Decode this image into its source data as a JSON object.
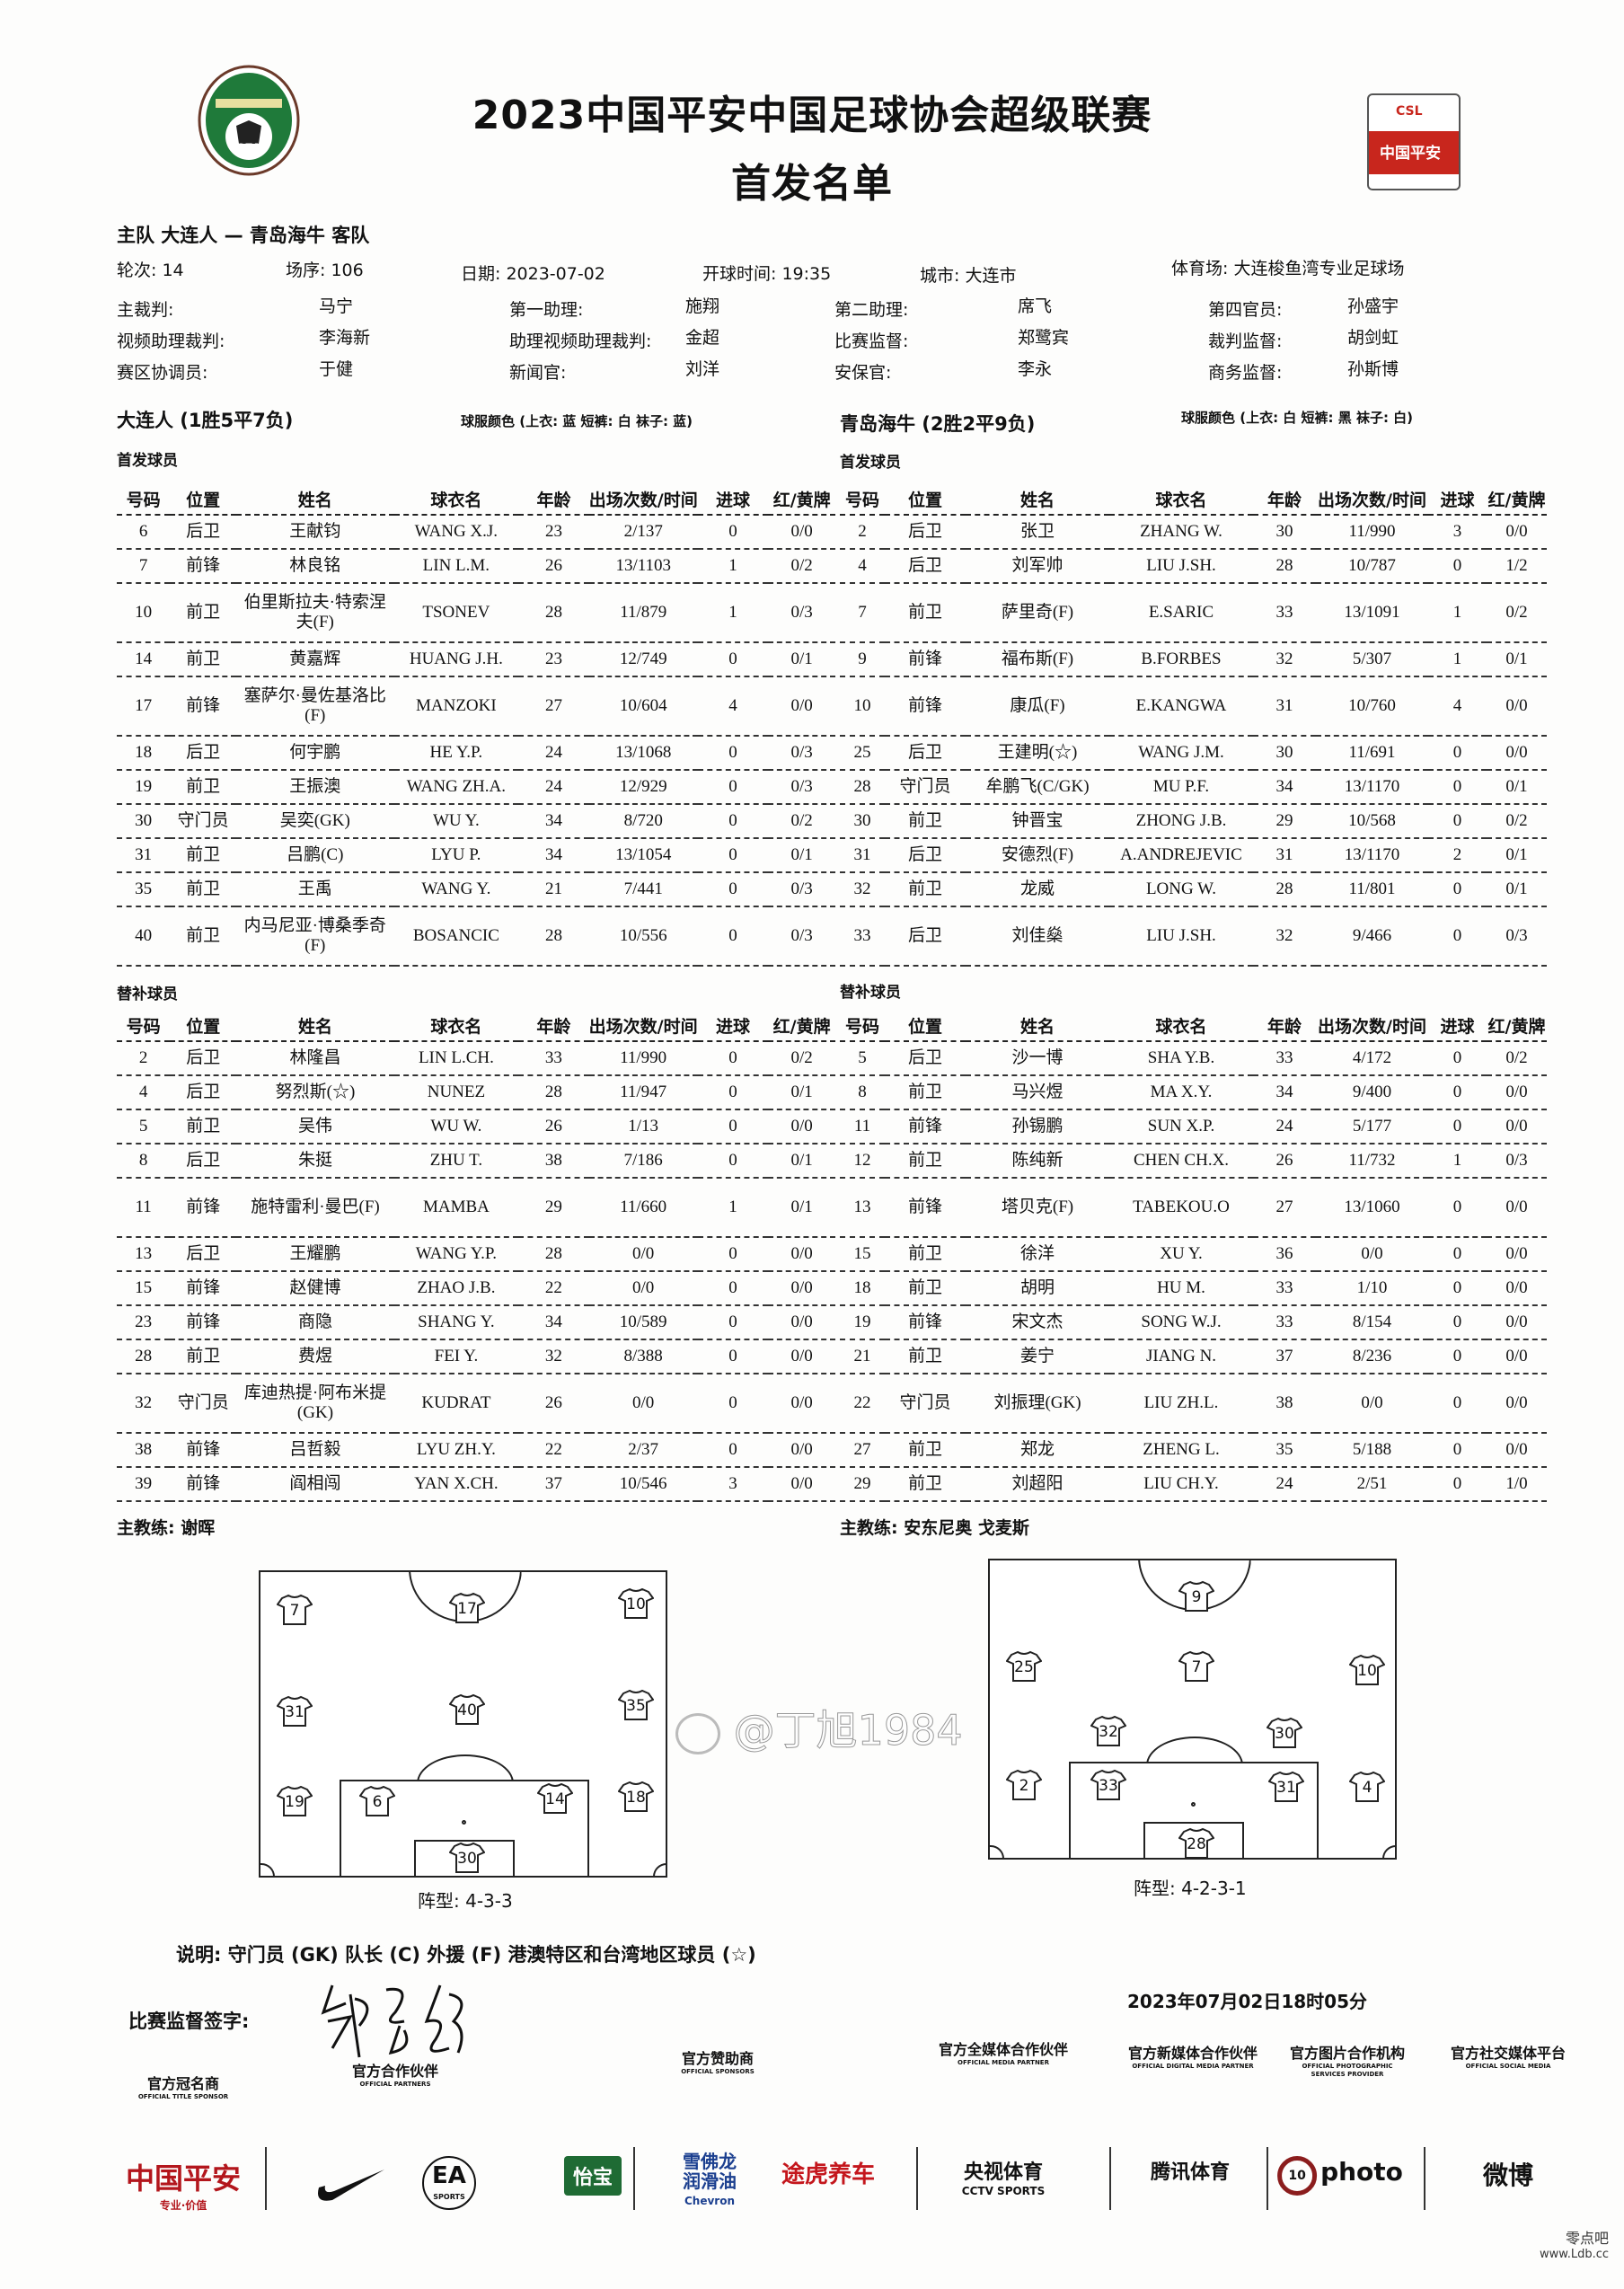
{
  "header": {
    "title": "2023中国平安中国足球协会超级联赛",
    "subtitle": "首发名单",
    "cfa_logo_text": "CFA",
    "csl_logo_text": "CSL",
    "csl_logo_sponsor": "中国平安"
  },
  "match": {
    "teams_line": "主队 大连人 — 青岛海牛 客队",
    "round": "轮次: 14",
    "match_no": "场序: 106",
    "date": "日期: 2023-07-02",
    "kickoff": "开球时间: 19:35",
    "city": "城市: 大连市",
    "stadium": "体育场: 大连梭鱼湾专业足球场"
  },
  "officials": [
    {
      "label": "主裁判:",
      "value": "马宁"
    },
    {
      "label": "第一助理:",
      "value": "施翔"
    },
    {
      "label": "第二助理:",
      "value": "席飞"
    },
    {
      "label": "第四官员:",
      "value": "孙盛宇"
    },
    {
      "label": "视频助理裁判:",
      "value": "李海新"
    },
    {
      "label": "助理视频助理裁判:",
      "value": "金超"
    },
    {
      "label": "比赛监督:",
      "value": "郑鹭宾"
    },
    {
      "label": "裁判监督:",
      "value": "胡剑虹"
    },
    {
      "label": "赛区协调员:",
      "value": "于健"
    },
    {
      "label": "新闻官:",
      "value": "刘洋"
    },
    {
      "label": "安保官:",
      "value": "李永"
    },
    {
      "label": "商务监督:",
      "value": "孙斯博"
    }
  ],
  "columns": [
    "号码",
    "位置",
    "姓名",
    "球衣名",
    "年龄",
    "出场次数/时间",
    "进球",
    "红/黄牌"
  ],
  "home": {
    "name": "大连人 (1胜5平7负)",
    "kit": "球服颜色 (上衣: 蓝 短裤: 白 袜子: 蓝)",
    "starters_label": "首发球员",
    "subs_label": "替补球员",
    "starters": [
      [
        "6",
        "后卫",
        "王献钧",
        "WANG X.J.",
        "23",
        "2/137",
        "0",
        "0/0"
      ],
      [
        "7",
        "前锋",
        "林良铭",
        "LIN L.M.",
        "26",
        "13/1103",
        "1",
        "0/2"
      ],
      [
        "10",
        "前卫",
        "伯里斯拉夫·特索涅夫(F)",
        "TSONEV",
        "28",
        "11/879",
        "1",
        "0/3"
      ],
      [
        "14",
        "前卫",
        "黄嘉辉",
        "HUANG J.H.",
        "23",
        "12/749",
        "0",
        "0/1"
      ],
      [
        "17",
        "前锋",
        "塞萨尔·曼佐基洛比(F)",
        "MANZOKI",
        "27",
        "10/604",
        "4",
        "0/0"
      ],
      [
        "18",
        "后卫",
        "何宇鹏",
        "HE Y.P.",
        "24",
        "13/1068",
        "0",
        "0/3"
      ],
      [
        "19",
        "前卫",
        "王振澳",
        "WANG ZH.A.",
        "24",
        "12/929",
        "0",
        "0/3"
      ],
      [
        "30",
        "守门员",
        "吴奕(GK)",
        "WU Y.",
        "34",
        "8/720",
        "0",
        "0/2"
      ],
      [
        "31",
        "前卫",
        "吕鹏(C)",
        "LYU P.",
        "34",
        "13/1054",
        "0",
        "0/1"
      ],
      [
        "35",
        "前卫",
        "王禹",
        "WANG Y.",
        "21",
        "7/441",
        "0",
        "0/3"
      ],
      [
        "40",
        "前卫",
        "内马尼亚·博桑季奇(F)",
        "BOSANCIC",
        "28",
        "10/556",
        "0",
        "0/3"
      ]
    ],
    "subs": [
      [
        "2",
        "后卫",
        "林隆昌",
        "LIN L.CH.",
        "33",
        "11/990",
        "0",
        "0/2"
      ],
      [
        "4",
        "后卫",
        "努烈斯(☆)",
        "NUNEZ",
        "28",
        "11/947",
        "0",
        "0/1"
      ],
      [
        "5",
        "前卫",
        "吴伟",
        "WU W.",
        "26",
        "1/13",
        "0",
        "0/0"
      ],
      [
        "8",
        "后卫",
        "朱挺",
        "ZHU T.",
        "38",
        "7/186",
        "0",
        "0/1"
      ],
      [
        "11",
        "前锋",
        "施特雷利·曼巴(F)",
        "MAMBA",
        "29",
        "11/660",
        "1",
        "0/1"
      ],
      [
        "13",
        "后卫",
        "王耀鹏",
        "WANG Y.P.",
        "28",
        "0/0",
        "0",
        "0/0"
      ],
      [
        "15",
        "前锋",
        "赵健博",
        "ZHAO J.B.",
        "22",
        "0/0",
        "0",
        "0/0"
      ],
      [
        "23",
        "前锋",
        "商隐",
        "SHANG Y.",
        "34",
        "10/589",
        "0",
        "0/0"
      ],
      [
        "28",
        "前卫",
        "费煜",
        "FEI Y.",
        "32",
        "8/388",
        "0",
        "0/0"
      ],
      [
        "32",
        "守门员",
        "库迪热提·阿布米提(GK)",
        "KUDRAT",
        "26",
        "0/0",
        "0",
        "0/0"
      ],
      [
        "38",
        "前锋",
        "吕哲毅",
        "LYU ZH.Y.",
        "22",
        "2/37",
        "0",
        "0/0"
      ],
      [
        "39",
        "前锋",
        "阎相闯",
        "YAN X.CH.",
        "37",
        "10/546",
        "3",
        "0/0"
      ]
    ],
    "coach": "主教练:  谢晖",
    "formation_label": "阵型: 4-3-3",
    "formation_numbers": [
      "7",
      "17",
      "10",
      "31",
      "40",
      "35",
      "19",
      "6",
      "14",
      "18",
      "30"
    ]
  },
  "away": {
    "name": "青岛海牛 (2胜2平9负)",
    "kit": "球服颜色 (上衣: 白 短裤: 黑 袜子: 白)",
    "starters_label": "首发球员",
    "subs_label": "替补球员",
    "starters": [
      [
        "2",
        "后卫",
        "张卫",
        "ZHANG W.",
        "30",
        "11/990",
        "3",
        "0/0"
      ],
      [
        "4",
        "后卫",
        "刘军帅",
        "LIU J.SH.",
        "28",
        "10/787",
        "0",
        "1/2"
      ],
      [
        "7",
        "前卫",
        "萨里奇(F)",
        "E.SARIC",
        "33",
        "13/1091",
        "1",
        "0/2"
      ],
      [
        "9",
        "前锋",
        "福布斯(F)",
        "B.FORBES",
        "32",
        "5/307",
        "1",
        "0/1"
      ],
      [
        "10",
        "前锋",
        "康瓜(F)",
        "E.KANGWA",
        "31",
        "10/760",
        "4",
        "0/0"
      ],
      [
        "25",
        "后卫",
        "王建明(☆)",
        "WANG J.M.",
        "30",
        "11/691",
        "0",
        "0/0"
      ],
      [
        "28",
        "守门员",
        "牟鹏飞(C/GK)",
        "MU P.F.",
        "34",
        "13/1170",
        "0",
        "0/1"
      ],
      [
        "30",
        "前卫",
        "钟晋宝",
        "ZHONG J.B.",
        "29",
        "10/568",
        "0",
        "0/2"
      ],
      [
        "31",
        "后卫",
        "安德烈(F)",
        "A.ANDREJEVIC",
        "31",
        "13/1170",
        "2",
        "0/1"
      ],
      [
        "32",
        "前卫",
        "龙威",
        "LONG W.",
        "28",
        "11/801",
        "0",
        "0/1"
      ],
      [
        "33",
        "后卫",
        "刘佳燊",
        "LIU J.SH.",
        "32",
        "9/466",
        "0",
        "0/3"
      ]
    ],
    "subs": [
      [
        "5",
        "后卫",
        "沙一博",
        "SHA Y.B.",
        "33",
        "4/172",
        "0",
        "0/2"
      ],
      [
        "8",
        "前卫",
        "马兴煜",
        "MA X.Y.",
        "34",
        "9/400",
        "0",
        "0/0"
      ],
      [
        "11",
        "前锋",
        "孙锡鹏",
        "SUN X.P.",
        "24",
        "5/177",
        "0",
        "0/0"
      ],
      [
        "12",
        "前卫",
        "陈纯新",
        "CHEN CH.X.",
        "26",
        "11/732",
        "1",
        "0/3"
      ],
      [
        "13",
        "前锋",
        "塔贝克(F)",
        "TABEKOU.O",
        "27",
        "13/1060",
        "0",
        "0/0"
      ],
      [
        "15",
        "前卫",
        "徐洋",
        "XU Y.",
        "36",
        "0/0",
        "0",
        "0/0"
      ],
      [
        "18",
        "前卫",
        "胡明",
        "HU M.",
        "33",
        "1/10",
        "0",
        "0/0"
      ],
      [
        "19",
        "前锋",
        "宋文杰",
        "SONG W.J.",
        "33",
        "8/154",
        "0",
        "0/0"
      ],
      [
        "21",
        "前卫",
        "姜宁",
        "JIANG N.",
        "37",
        "8/236",
        "0",
        "0/0"
      ],
      [
        "22",
        "守门员",
        "刘振理(GK)",
        "LIU ZH.L.",
        "38",
        "0/0",
        "0",
        "0/0"
      ],
      [
        "27",
        "前卫",
        "郑龙",
        "ZHENG L.",
        "35",
        "5/188",
        "0",
        "0/0"
      ],
      [
        "29",
        "前卫",
        "刘超阳",
        "LIU CH.Y.",
        "24",
        "2/51",
        "0",
        "1/0"
      ]
    ],
    "coach": "主教练:  安东尼奥 戈麦斯",
    "formation_label": "阵型: 4-2-3-1",
    "formation_numbers": [
      "9",
      "25",
      "7",
      "10",
      "32",
      "30",
      "2",
      "33",
      "31",
      "4",
      "28"
    ]
  },
  "footer": {
    "legend": "说明: 守门员 (GK) 队长 (C) 外援 (F) 港澳特区和台湾地区球员 (☆)",
    "signature_label": "比赛监督签字:",
    "signature": "郑鹭宾",
    "timestamp": "2023年07月02日18时05分"
  },
  "sponsors": {
    "categories": [
      {
        "cn": "官方冠名商",
        "en": "OFFICIAL TITLE SPONSOR"
      },
      {
        "cn": "官方合作伙伴",
        "en": "OFFICIAL PARTNERS"
      },
      {
        "cn": "官方赞助商",
        "en": "OFFICIAL SPONSORS"
      },
      {
        "cn": "官方全媒体合作伙伴",
        "en": "OFFICIAL MEDIA PARTNER"
      },
      {
        "cn": "官方新媒体合作伙伴",
        "en": "OFFICIAL DIGITAL MEDIA PARTNER"
      },
      {
        "cn": "官方图片合作机构",
        "en": "OFFICIAL PHOTOGRAPHIC SERVICES PROVIDER"
      },
      {
        "cn": "官方社交媒体平台",
        "en": "OFFICIAL SOCIAL MEDIA"
      }
    ],
    "logos": [
      {
        "text": "中国平安",
        "sub": "专业·价值",
        "color": "#b3161c"
      },
      {
        "text": "",
        "icon": "nike-swoosh",
        "color": "#111111"
      },
      {
        "text": "EA",
        "sub": "SPORTS",
        "color": "#111111"
      },
      {
        "text": "怡宝",
        "color": "#1f6b34"
      },
      {
        "text": "雪佛龙润滑油",
        "sub": "Chevron",
        "color": "#1b3f8f"
      },
      {
        "text": "途虎养车",
        "color": "#c4161c"
      },
      {
        "text": "央视体育",
        "sub": "CCTV SPORTS",
        "color": "#111111"
      },
      {
        "text": "腾讯体育",
        "color": "#111111"
      },
      {
        "text": "photo",
        "sub": "10",
        "color": "#111111"
      },
      {
        "text": "微博",
        "color": "#111111"
      }
    ]
  },
  "watermarks": {
    "weibo": "@丁旭1984",
    "site_cn": "零点吧",
    "site_url": "www.Ldb.cc"
  },
  "colors": {
    "ink": "#111111",
    "cfa_green": "#1f7a3a",
    "csl_red": "#c8261d"
  }
}
